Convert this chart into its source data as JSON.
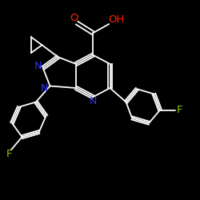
{
  "background_color": "#000000",
  "bond_color": "#ffffff",
  "N_color": "#3333ff",
  "O_color": "#ff2200",
  "F_color": "#88cc00",
  "lw": 1.3,
  "xlim": [
    0,
    10
  ],
  "ylim": [
    0,
    10
  ]
}
